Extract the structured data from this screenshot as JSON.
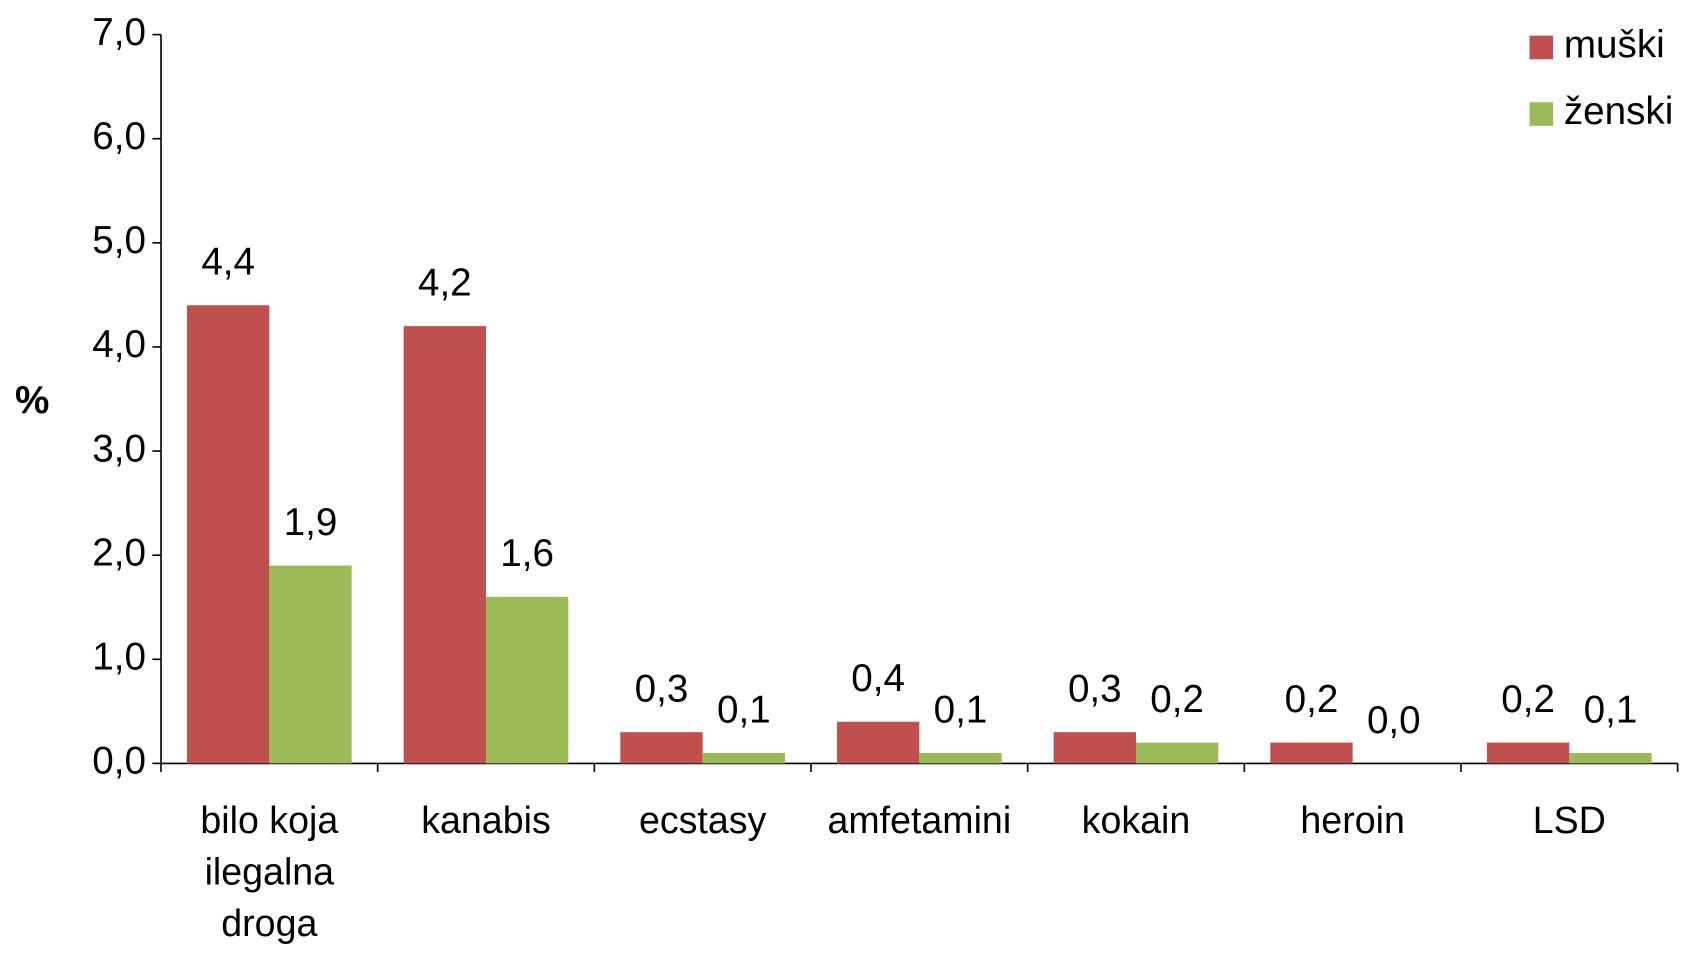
{
  "chart_data": {
    "type": "bar",
    "y_label": "%",
    "categories": [
      "bilo koja ilegalna droga",
      "kanabis",
      "ecstasy",
      "amfetamini",
      "kokain",
      "heroin",
      "LSD"
    ],
    "series": [
      {
        "name": "muški",
        "color": "#c0504d",
        "values": [
          4.4,
          4.2,
          0.3,
          0.4,
          0.3,
          0.2,
          0.2
        ],
        "value_labels": [
          "4,4",
          "4,2",
          "0,3",
          "0,4",
          "0,3",
          "0,2",
          "0,2"
        ]
      },
      {
        "name": "ženski",
        "color": "#9bbb59",
        "values": [
          1.9,
          1.6,
          0.1,
          0.1,
          0.2,
          0.0,
          0.1
        ],
        "value_labels": [
          "1,9",
          "1,6",
          "0,1",
          "0,1",
          "0,2",
          "0,0",
          "0,1"
        ]
      }
    ],
    "ylim": [
      0,
      7
    ],
    "yticks": [
      {
        "value": 0,
        "label": "0,0"
      },
      {
        "value": 1,
        "label": "1,0"
      },
      {
        "value": 2,
        "label": "2,0"
      },
      {
        "value": 3,
        "label": "3,0"
      },
      {
        "value": 4,
        "label": "4,0"
      },
      {
        "value": 5,
        "label": "5,0"
      },
      {
        "value": 6,
        "label": "6,0"
      },
      {
        "value": 7,
        "label": "7,0"
      }
    ],
    "grid": false,
    "legend": "top-right"
  }
}
